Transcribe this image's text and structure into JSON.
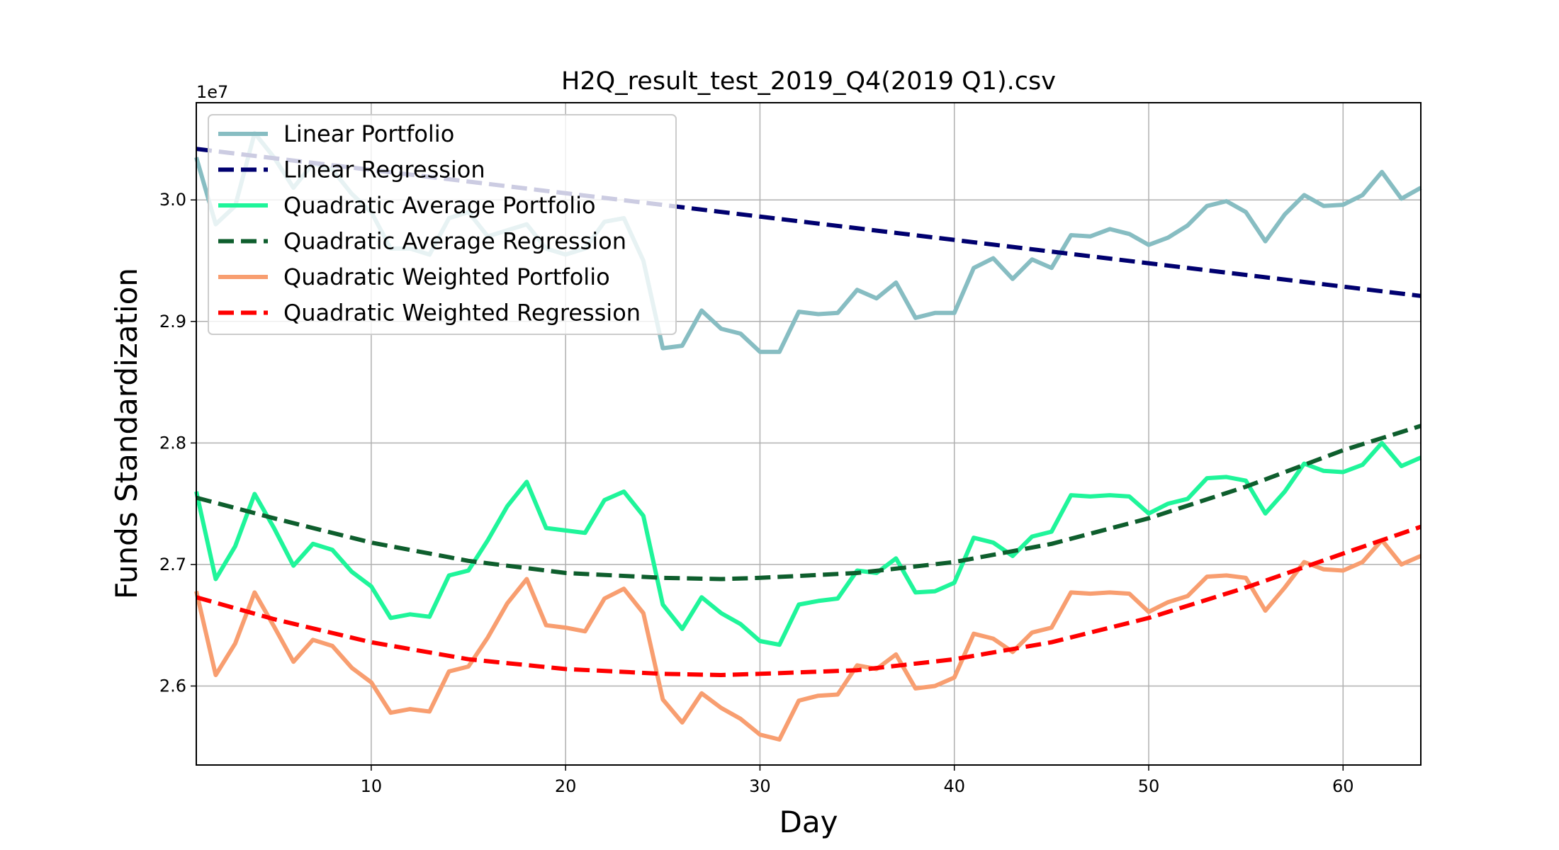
{
  "chart_data": {
    "type": "line",
    "title": "H2Q_result_test_2019_Q4(2019 Q1).csv",
    "xlabel": "Day",
    "ylabel": "Funds Standardization",
    "y_offset_label": "1e7",
    "xlim": [
      1,
      64
    ],
    "ylim": [
      25.35,
      30.8
    ],
    "y_scale_note": "values in units of 1e7",
    "xticks": [
      10,
      20,
      30,
      40,
      50,
      60
    ],
    "yticks": [
      {
        "value": 26,
        "label": "2.6"
      },
      {
        "value": 27,
        "label": "2.7"
      },
      {
        "value": 28,
        "label": "2.8"
      },
      {
        "value": 29,
        "label": "2.9"
      },
      {
        "value": 30,
        "label": "3.0"
      }
    ],
    "grid": true,
    "legend_position": "top-left",
    "series": [
      {
        "name": "Linear Portfolio",
        "color": "#87bdc2",
        "style": "solid",
        "x": [
          1,
          2,
          3,
          4,
          5,
          6,
          7,
          8,
          9,
          10,
          11,
          12,
          13,
          14,
          15,
          16,
          17,
          18,
          19,
          20,
          21,
          22,
          23,
          24,
          25,
          26,
          27,
          28,
          29,
          30,
          31,
          32,
          33,
          34,
          35,
          36,
          37,
          38,
          39,
          40,
          41,
          42,
          43,
          44,
          45,
          46,
          47,
          48,
          49,
          50,
          51,
          52,
          53,
          54,
          55,
          56,
          57,
          58,
          59,
          60,
          61,
          62,
          63,
          64
        ],
        "values": [
          30.35,
          29.8,
          29.95,
          30.55,
          30.35,
          30.1,
          30.3,
          30.25,
          30.05,
          29.9,
          29.6,
          29.6,
          29.55,
          29.85,
          29.9,
          29.7,
          29.75,
          29.8,
          29.6,
          29.55,
          29.6,
          29.82,
          29.85,
          29.5,
          28.78,
          28.8,
          29.09,
          28.94,
          28.9,
          28.75,
          28.75,
          29.08,
          29.06,
          29.07,
          29.26,
          29.19,
          29.32,
          29.03,
          29.07,
          29.07,
          29.44,
          29.52,
          29.35,
          29.51,
          29.44,
          29.71,
          29.7,
          29.76,
          29.72,
          29.63,
          29.69,
          29.79,
          29.95,
          29.99,
          29.9,
          29.66,
          29.88,
          30.04,
          29.95,
          29.96,
          30.04,
          30.23,
          30.01,
          30.1
        ]
      },
      {
        "name": "Linear Regression",
        "color": "#00006f",
        "style": "dashed",
        "x": [
          1,
          64
        ],
        "values": [
          30.42,
          29.21
        ]
      },
      {
        "name": "Quadratic Average Portfolio",
        "color": "#1ff59a",
        "style": "solid",
        "x": [
          1,
          2,
          3,
          4,
          5,
          6,
          7,
          8,
          9,
          10,
          11,
          12,
          13,
          14,
          15,
          16,
          17,
          18,
          19,
          20,
          21,
          22,
          23,
          24,
          25,
          26,
          27,
          28,
          29,
          30,
          31,
          32,
          33,
          34,
          35,
          36,
          37,
          38,
          39,
          40,
          41,
          42,
          43,
          44,
          45,
          46,
          47,
          48,
          49,
          50,
          51,
          52,
          53,
          54,
          55,
          56,
          57,
          58,
          59,
          60,
          61,
          62,
          63,
          64
        ],
        "values": [
          27.6,
          26.88,
          27.15,
          27.58,
          27.3,
          26.99,
          27.17,
          27.12,
          26.94,
          26.82,
          26.56,
          26.59,
          26.57,
          26.91,
          26.95,
          27.2,
          27.48,
          27.68,
          27.3,
          27.28,
          27.26,
          27.53,
          27.6,
          27.4,
          26.67,
          26.47,
          26.73,
          26.6,
          26.51,
          26.37,
          26.34,
          26.67,
          26.7,
          26.72,
          26.95,
          26.93,
          27.05,
          26.77,
          26.78,
          26.85,
          27.22,
          27.18,
          27.07,
          27.23,
          27.27,
          27.57,
          27.56,
          27.57,
          27.56,
          27.42,
          27.5,
          27.54,
          27.71,
          27.72,
          27.69,
          27.42,
          27.6,
          27.83,
          27.77,
          27.76,
          27.82,
          28.0,
          27.81,
          27.88
        ]
      },
      {
        "name": "Quadratic Average Regression",
        "color": "#0e5e2d",
        "style": "dashed",
        "x": [
          1,
          5,
          10,
          15,
          20,
          25,
          28,
          30,
          35,
          40,
          45,
          50,
          55,
          60,
          64
        ],
        "values": [
          27.55,
          27.38,
          27.18,
          27.03,
          26.93,
          26.89,
          26.88,
          26.89,
          26.93,
          27.02,
          27.17,
          27.38,
          27.64,
          27.94,
          28.14
        ]
      },
      {
        "name": "Quadratic Weighted Portfolio",
        "color": "#f89e70",
        "style": "solid",
        "x": [
          1,
          2,
          3,
          4,
          5,
          6,
          7,
          8,
          9,
          10,
          11,
          12,
          13,
          14,
          15,
          16,
          17,
          18,
          19,
          20,
          21,
          22,
          23,
          24,
          25,
          26,
          27,
          28,
          29,
          30,
          31,
          32,
          33,
          34,
          35,
          36,
          37,
          38,
          39,
          40,
          41,
          42,
          43,
          44,
          45,
          46,
          47,
          48,
          49,
          50,
          51,
          52,
          53,
          54,
          55,
          56,
          57,
          58,
          59,
          60,
          61,
          62,
          63,
          64
        ],
        "values": [
          26.78,
          26.09,
          26.35,
          26.77,
          26.49,
          26.2,
          26.38,
          26.33,
          26.15,
          26.03,
          25.78,
          25.81,
          25.79,
          26.12,
          26.16,
          26.4,
          26.68,
          26.88,
          26.5,
          26.48,
          26.45,
          26.72,
          26.8,
          26.6,
          25.89,
          25.7,
          25.94,
          25.82,
          25.73,
          25.6,
          25.56,
          25.88,
          25.92,
          25.93,
          26.17,
          26.14,
          26.26,
          25.98,
          26.0,
          26.07,
          26.43,
          26.39,
          26.28,
          26.44,
          26.48,
          26.77,
          26.76,
          26.77,
          26.76,
          26.61,
          26.69,
          26.74,
          26.9,
          26.91,
          26.89,
          26.62,
          26.81,
          27.02,
          26.96,
          26.95,
          27.02,
          27.2,
          27.0,
          27.07
        ]
      },
      {
        "name": "Quadratic Weighted Regression",
        "color": "#ff0000",
        "style": "dashed",
        "x": [
          1,
          5,
          10,
          15,
          20,
          25,
          28,
          30,
          35,
          40,
          45,
          50,
          55,
          60,
          64
        ],
        "values": [
          26.73,
          26.55,
          26.36,
          26.22,
          26.14,
          26.1,
          26.09,
          26.1,
          26.13,
          26.22,
          26.36,
          26.56,
          26.81,
          27.09,
          27.31
        ]
      }
    ]
  }
}
